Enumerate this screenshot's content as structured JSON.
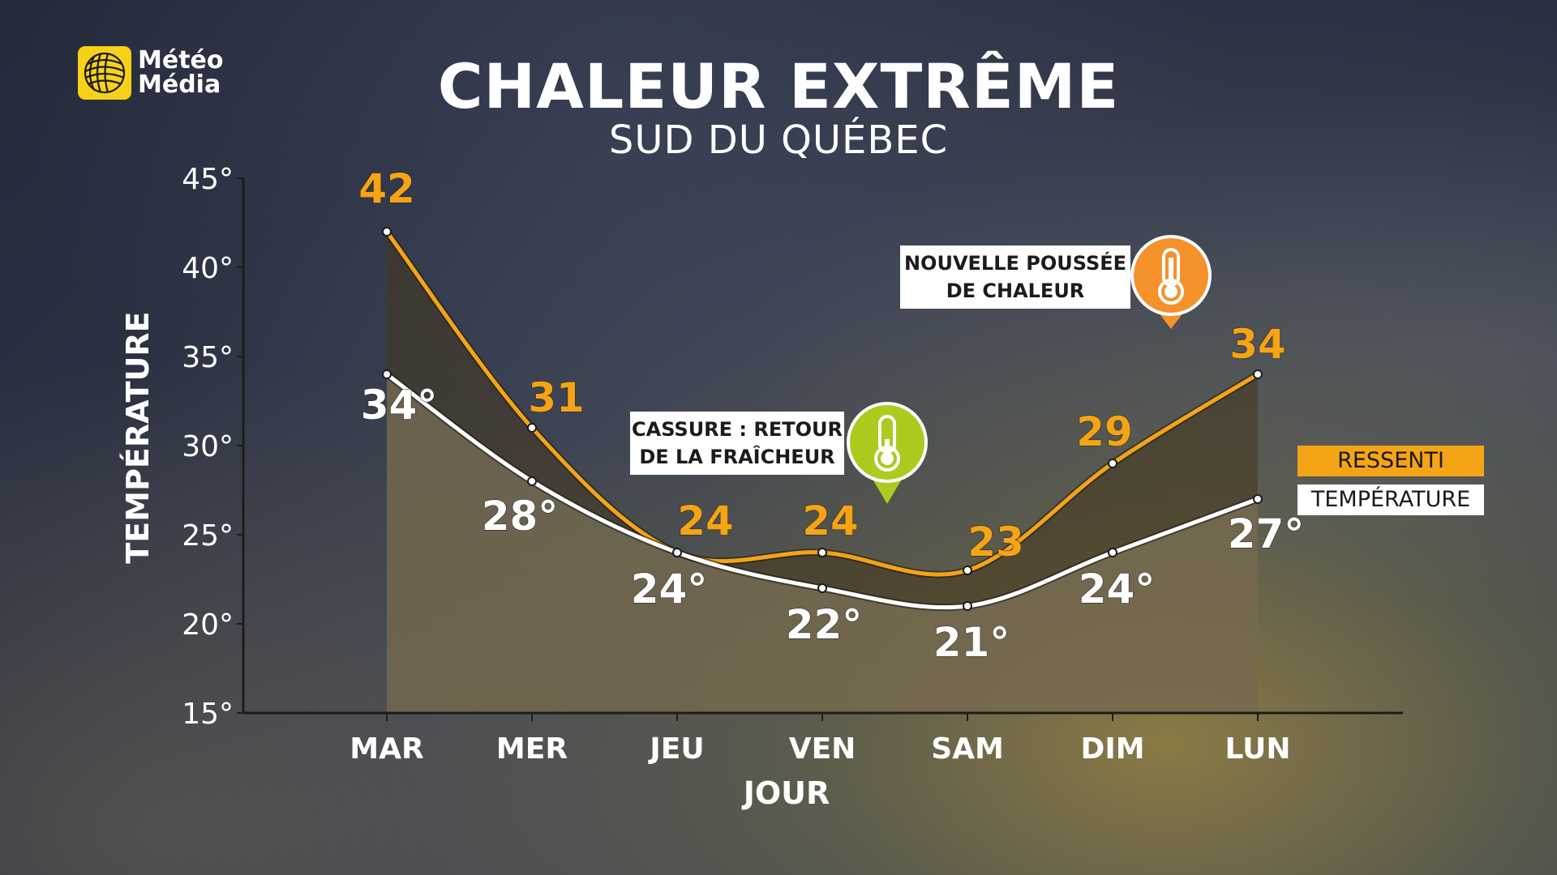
{
  "brand": {
    "line1": "Météo",
    "line2": "Média",
    "color": "#f7d117"
  },
  "header": {
    "title": "CHALEUR EXTRÊME",
    "subtitle": "SUD DU QUÉBEC"
  },
  "chart_data": {
    "type": "line",
    "x": [
      "MAR",
      "MER",
      "JEU",
      "VEN",
      "SAM",
      "DIM",
      "LUN"
    ],
    "xlabel": "JOUR",
    "ylabel": "TEMPÉRATURE",
    "ylim": [
      15,
      45
    ],
    "yticks": [
      15,
      20,
      25,
      30,
      35,
      40,
      45
    ],
    "ytick_labels": [
      "15°",
      "20°",
      "25°",
      "30°",
      "35°",
      "40°",
      "45°"
    ],
    "series": [
      {
        "name": "RESSENTI",
        "values": [
          42,
          31,
          24,
          24,
          23,
          29,
          34
        ],
        "labels": [
          "42",
          "31",
          "24",
          "24",
          "23",
          "29",
          "34"
        ],
        "color": "#f5a416"
      },
      {
        "name": "TEMPÉRATURE",
        "values": [
          34,
          28,
          24,
          22,
          21,
          24,
          27
        ],
        "labels": [
          "34°",
          "28°",
          "24°",
          "22°",
          "21°",
          "24°",
          "27°"
        ],
        "color": "#ffffff"
      }
    ],
    "annotations": [
      {
        "lines": [
          "CASSURE : RETOUR",
          "DE LA FRAÎCHEUR"
        ],
        "icon": "thermometer-low-icon",
        "color": "#a9cc1f"
      },
      {
        "lines": [
          "NOUVELLE POUSSÉE",
          "DE CHALEUR"
        ],
        "icon": "thermometer-high-icon",
        "color": "#f5922a"
      }
    ],
    "legend_position": "right",
    "grid": false
  }
}
